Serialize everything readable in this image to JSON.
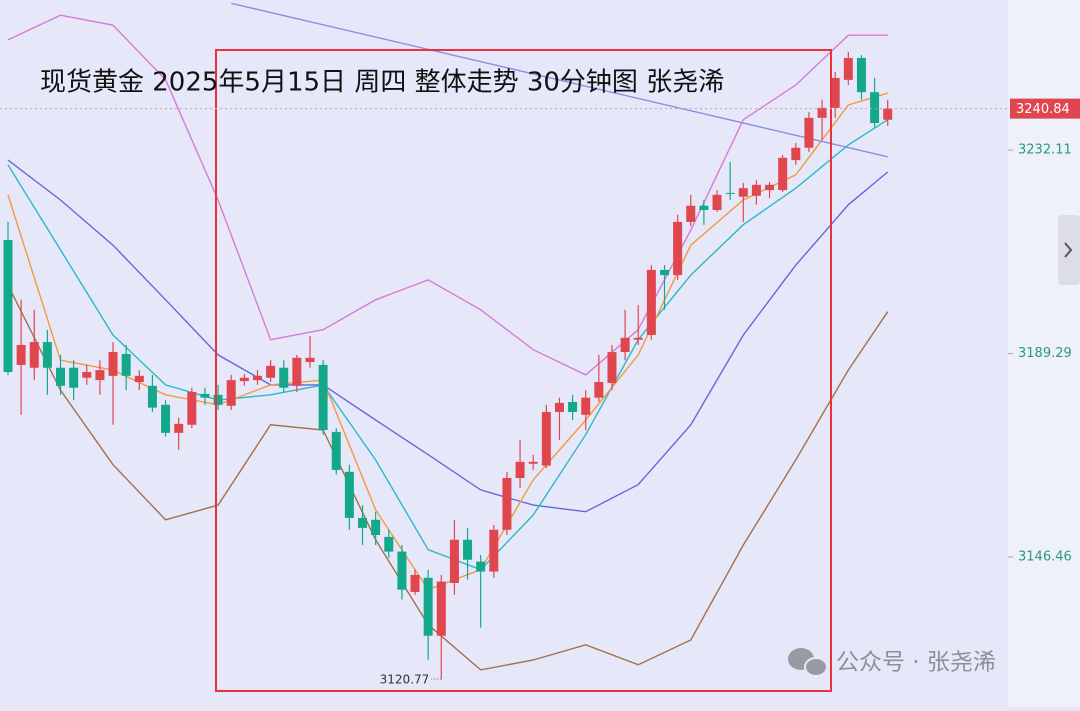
{
  "chart_data": {
    "type": "candlestick",
    "title": "现货黄金 2025年5月15日 周四 整体走势 30分钟图 张尧浠",
    "watermark": "公众号 · 张尧浠",
    "ylim": [
      3114.9,
      3263.7
    ],
    "yticks": [
      3232.11,
      3189.29,
      3146.46
    ],
    "up_color": "#e0464e",
    "down_color": "#14a88a",
    "open": [
      3213.2,
      3186.9,
      3186.3,
      3191.7,
      3186.3,
      3186.3,
      3184.2,
      3183.7,
      3184.6,
      3189.2,
      3183.3,
      3182.5,
      3178.5,
      3172.6,
      3174.3,
      3180.8,
      3180.6,
      3178.3,
      3183.5,
      3183.7,
      3184.2,
      3186.3,
      3182.5,
      3187.5,
      3186.9,
      3172.8,
      3164.4,
      3154.7,
      3154.3,
      3150.7,
      3147.6,
      3139.1,
      3142.1,
      3129.9,
      3141.0,
      3150.1,
      3145.5,
      3143.4,
      3152.2,
      3163.1,
      3166.1,
      3165.7,
      3177.0,
      3179.1,
      3176.4,
      3180.0,
      3183.1,
      3189.6,
      3192.2,
      3193.2,
      3206.9,
      3205.8,
      3217.0,
      3220.4,
      3219.5,
      3223.1,
      3222.3,
      3222.5,
      3223.7,
      3223.7,
      3230.0,
      3232.6,
      3238.9,
      3241.0,
      3246.9,
      3251.5,
      3244.3,
      3238.5
    ],
    "high": [
      3217.0,
      3200.6,
      3198.5,
      3194.3,
      3189.0,
      3187.9,
      3186.9,
      3187.9,
      3191.7,
      3191.1,
      3185.8,
      3184.8,
      3179.5,
      3175.8,
      3182.1,
      3182.1,
      3182.7,
      3184.8,
      3185.0,
      3185.8,
      3187.9,
      3187.9,
      3189.0,
      3193.0,
      3187.9,
      3173.6,
      3165.9,
      3157.4,
      3156.0,
      3152.2,
      3149.0,
      3143.8,
      3143.8,
      3142.7,
      3154.3,
      3152.6,
      3146.9,
      3153.2,
      3164.4,
      3171.1,
      3168.0,
      3178.5,
      3180.0,
      3180.6,
      3181.6,
      3189.0,
      3191.1,
      3198.5,
      3199.5,
      3207.9,
      3207.9,
      3218.5,
      3222.7,
      3221.6,
      3223.7,
      3229.6,
      3225.2,
      3225.8,
      3225.4,
      3231.1,
      3233.6,
      3240.1,
      3242.7,
      3248.6,
      3252.8,
      3252.1,
      3247.3,
      3242.7
    ],
    "low": [
      3184.8,
      3176.4,
      3183.7,
      3180.6,
      3180.6,
      3179.5,
      3182.7,
      3180.6,
      3174.3,
      3181.6,
      3181.6,
      3177.0,
      3171.8,
      3169.0,
      3173.6,
      3178.5,
      3177.4,
      3177.4,
      3182.5,
      3182.7,
      3183.3,
      3181.2,
      3181.2,
      3186.3,
      3172.2,
      3163.8,
      3152.2,
      3149.0,
      3149.0,
      3146.3,
      3137.5,
      3138.5,
      3124.8,
      3120.77,
      3138.5,
      3141.7,
      3131.6,
      3142.1,
      3151.1,
      3161.0,
      3164.8,
      3165.2,
      3171.1,
      3175.3,
      3173.2,
      3179.1,
      3181.6,
      3187.9,
      3191.1,
      3192.2,
      3198.5,
      3204.8,
      3216.1,
      3216.4,
      3219.1,
      3221.6,
      3217.0,
      3220.6,
      3222.0,
      3223.3,
      3229.0,
      3231.7,
      3234.2,
      3238.9,
      3245.8,
      3242.7,
      3236.8,
      3237.2
    ],
    "close": [
      3185.4,
      3191.1,
      3191.7,
      3186.3,
      3182.5,
      3182.1,
      3185.4,
      3185.8,
      3189.6,
      3184.6,
      3184.6,
      3177.9,
      3172.6,
      3174.5,
      3181.2,
      3180.0,
      3178.5,
      3183.7,
      3184.2,
      3184.6,
      3186.7,
      3182.1,
      3188.4,
      3188.4,
      3173.2,
      3164.8,
      3154.7,
      3152.6,
      3151.1,
      3147.6,
      3139.6,
      3142.7,
      3129.9,
      3141.3,
      3150.1,
      3145.9,
      3143.4,
      3152.2,
      3163.1,
      3166.5,
      3166.5,
      3177.0,
      3178.9,
      3177.0,
      3180.0,
      3183.3,
      3189.6,
      3192.6,
      3192.6,
      3206.9,
      3205.8,
      3217.0,
      3220.4,
      3219.5,
      3222.7,
      3222.9,
      3224.1,
      3224.8,
      3224.8,
      3230.5,
      3232.6,
      3238.9,
      3241.0,
      3247.3,
      3251.5,
      3244.3,
      3237.8,
      3240.84
    ],
    "lines": [
      {
        "color": "#d77ad6",
        "x": [
          0,
          4,
          8,
          12,
          16,
          20,
          24,
          28,
          32,
          36,
          40,
          44,
          48,
          52,
          56,
          60,
          64,
          67
        ],
        "values": [
          3255.3,
          3260.5,
          3258.4,
          3246.9,
          3221.6,
          3192.2,
          3194.3,
          3200.6,
          3204.8,
          3198.5,
          3190.1,
          3184.8,
          3194.3,
          3215.3,
          3238.5,
          3245.8,
          3256.3,
          3256.3
        ]
      },
      {
        "color": "#a3704c",
        "x": [
          0,
          4,
          8,
          12,
          16,
          20,
          24,
          28,
          32,
          36,
          40,
          44,
          48,
          52,
          56,
          60,
          64,
          67
        ],
        "values": [
          3203.7,
          3181.6,
          3165.9,
          3154.3,
          3157.4,
          3174.3,
          3173.2,
          3150.1,
          3132.2,
          3122.7,
          3124.8,
          3128.0,
          3123.8,
          3129.0,
          3149.0,
          3166.9,
          3185.8,
          3198.1
        ]
      },
      {
        "color": "#6666dd",
        "x": [
          0,
          4,
          8,
          12,
          16,
          20,
          24,
          28,
          32,
          36,
          40,
          44,
          48,
          52,
          56,
          60,
          64,
          67
        ],
        "values": [
          3230.0,
          3221.6,
          3212.1,
          3200.6,
          3189.0,
          3182.7,
          3182.7,
          3175.3,
          3168.0,
          3160.6,
          3157.4,
          3156.0,
          3161.7,
          3174.3,
          3193.2,
          3207.9,
          3220.6,
          3227.5
        ]
      },
      {
        "color": "#2bb8c8",
        "x": [
          0,
          4,
          8,
          12,
          16,
          20,
          24,
          28,
          32,
          36,
          40,
          44,
          48,
          52,
          56,
          60,
          64,
          67
        ],
        "values": [
          3229.0,
          3211.1,
          3193.2,
          3182.7,
          3179.5,
          3180.6,
          3182.7,
          3166.9,
          3148.0,
          3143.8,
          3155.3,
          3172.2,
          3192.2,
          3205.8,
          3216.4,
          3224.1,
          3233.2,
          3238.5
        ]
      },
      {
        "color": "#f29a3c",
        "x": [
          0,
          4,
          8,
          12,
          16,
          20,
          24,
          28,
          32,
          36,
          40,
          44,
          48,
          52,
          56,
          60,
          64,
          67
        ],
        "values": [
          3222.7,
          3187.9,
          3185.8,
          3180.6,
          3178.5,
          3182.7,
          3183.7,
          3156.4,
          3139.6,
          3143.8,
          3162.7,
          3175.3,
          3189.0,
          3212.1,
          3221.6,
          3226.9,
          3241.6,
          3244.1
        ]
      },
      {
        "color": "#8e8ee0",
        "x": [
          17,
          67
        ],
        "values": [
          3263.0,
          3230.7
        ]
      }
    ]
  }
}
